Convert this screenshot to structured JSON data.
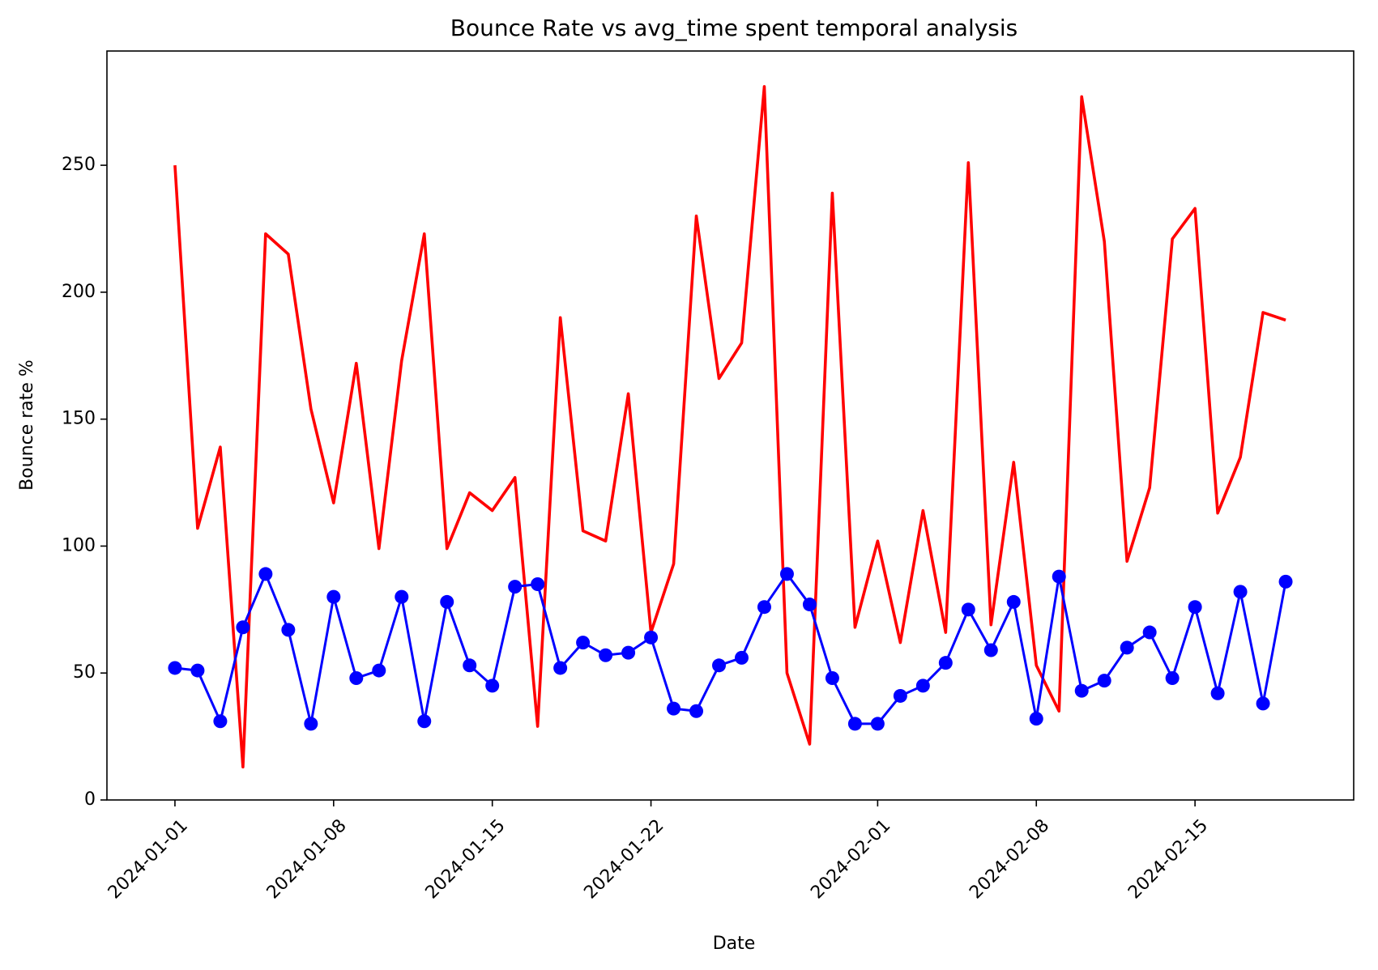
{
  "chart_data": {
    "type": "line",
    "title": "Bounce Rate vs avg_time spent temporal analysis",
    "xlabel": "Date",
    "ylabel": "Bounce rate %",
    "x_start": "2024-01-01",
    "x_end": "2024-02-19",
    "xlim": [
      "2023-12-29",
      "2024-02-22"
    ],
    "ylim": [
      0,
      295
    ],
    "grid": false,
    "legend": "none",
    "x_ticks": [
      "2024-01-01",
      "2024-01-08",
      "2024-01-15",
      "2024-01-22",
      "2024-02-01",
      "2024-02-08",
      "2024-02-15"
    ],
    "y_ticks": [
      0,
      50,
      100,
      150,
      200,
      250
    ],
    "series": [
      {
        "color": "#ff0000",
        "marker": "none",
        "values": [
          250,
          107,
          139,
          13,
          223,
          215,
          154,
          117,
          172,
          99,
          173,
          223,
          99,
          121,
          114,
          127,
          29,
          190,
          106,
          102,
          160,
          66,
          93,
          230,
          166,
          180,
          281,
          50,
          22,
          239,
          68,
          102,
          62,
          114,
          66,
          251,
          69,
          133,
          53,
          35,
          277,
          220,
          94,
          123,
          221,
          233,
          113,
          135,
          192,
          189
        ]
      },
      {
        "color": "#0000ff",
        "marker": "circle",
        "values": [
          52,
          51,
          31,
          68,
          89,
          67,
          30,
          80,
          48,
          51,
          80,
          31,
          78,
          53,
          45,
          84,
          85,
          52,
          62,
          57,
          58,
          64,
          36,
          35,
          53,
          56,
          76,
          89,
          77,
          48,
          30,
          30,
          41,
          45,
          54,
          75,
          59,
          78,
          32,
          88,
          43,
          47,
          60,
          66,
          48,
          76,
          42,
          82,
          38,
          86
        ]
      }
    ]
  }
}
